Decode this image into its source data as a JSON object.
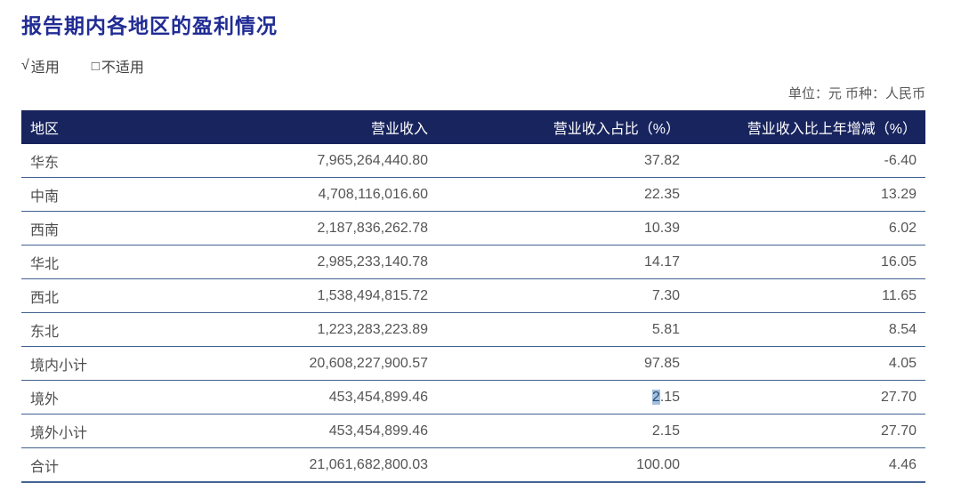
{
  "page": {
    "title": "报告期内各地区的盈利情况",
    "applicable": {
      "symbol": "√",
      "label": "适用"
    },
    "not_applicable": {
      "symbol": "□",
      "label": "不适用"
    },
    "unit_note": "单位：元  币种：人民币"
  },
  "colors": {
    "title_text": "#212c94",
    "header_bg": "#18245e",
    "header_text": "#ffffff",
    "row_line": "#40618f",
    "body_text": "#555555",
    "selection_bg": "#a3c0dd",
    "selection_text": "#274e79"
  },
  "table": {
    "columns": [
      "地区",
      "营业收入",
      "营业收入占比（%）",
      "营业收入比上年增减（%）"
    ],
    "rows": [
      {
        "region": "华东",
        "revenue": "7,965,264,440.80",
        "share": "37.82",
        "yoy": "-6.40"
      },
      {
        "region": "中南",
        "revenue": "4,708,116,016.60",
        "share": "22.35",
        "yoy": "13.29"
      },
      {
        "region": "西南",
        "revenue": "2,187,836,262.78",
        "share": "10.39",
        "yoy": "6.02"
      },
      {
        "region": "华北",
        "revenue": "2,985,233,140.78",
        "share": "14.17",
        "yoy": "16.05"
      },
      {
        "region": "西北",
        "revenue": "1,538,494,815.72",
        "share": "7.30",
        "yoy": "11.65"
      },
      {
        "region": "东北",
        "revenue": "1,223,283,223.89",
        "share": "5.81",
        "yoy": "8.54"
      },
      {
        "region": "境内小计",
        "revenue": "20,608,227,900.57",
        "share": "97.85",
        "yoy": "4.05"
      },
      {
        "region": "境外",
        "revenue": "453,454,899.46",
        "share": "2.15",
        "yoy": "27.70",
        "share_selection": {
          "selected": "2",
          "rest": ".15"
        }
      },
      {
        "region": "境外小计",
        "revenue": "453,454,899.46",
        "share": "2.15",
        "yoy": "27.70"
      },
      {
        "region": "合计",
        "revenue": "21,061,682,800.03",
        "share": "100.00",
        "yoy": "4.46"
      }
    ]
  }
}
